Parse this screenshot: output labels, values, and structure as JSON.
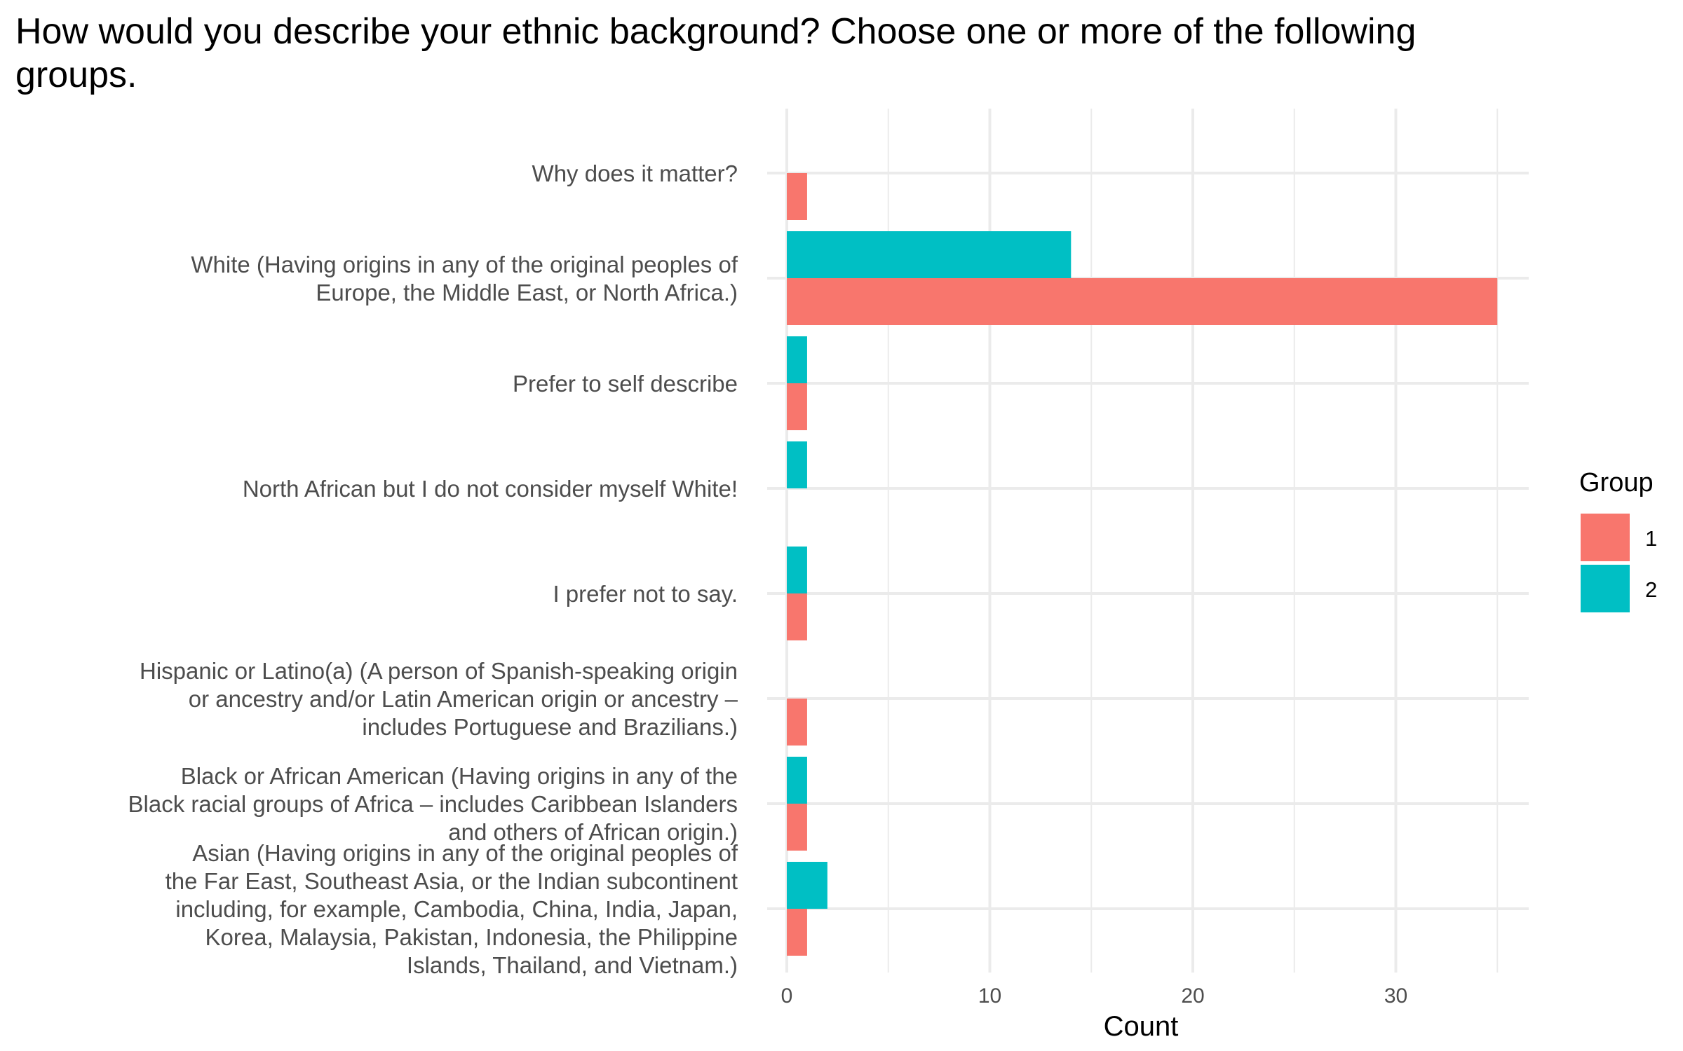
{
  "chart_data": {
    "type": "bar",
    "orientation": "horizontal",
    "title": "How would you describe your ethnic background? Choose one or more of the following groups.",
    "xlabel": "Count",
    "ylabel": "",
    "xlim": [
      0,
      36.5
    ],
    "x_ticks": [
      0,
      10,
      20,
      30
    ],
    "grid": true,
    "legend": {
      "title": "Group",
      "placement": "right"
    },
    "categories": [
      [
        "Why does it matter?"
      ],
      [
        "White (Having origins in any of the original peoples of",
        "Europe, the Middle East, or North Africa.)"
      ],
      [
        "Prefer to self describe"
      ],
      [
        "North African but I do not consider myself White!"
      ],
      [
        "I prefer not to say."
      ],
      [
        "Hispanic or Latino(a) (A person of Spanish-speaking origin",
        "or ancestry and/or Latin American origin or ancestry –",
        "includes Portuguese and Brazilians.)"
      ],
      [
        "Black or African American (Having origins in any of the",
        "Black racial groups of Africa – includes Caribbean Islanders",
        "and others of African origin.)"
      ],
      [
        "Asian (Having origins in any of the original peoples of",
        "the Far East, Southeast Asia, or the Indian subcontinent",
        "including, for example, Cambodia, China, India, Japan,",
        "Korea, Malaysia, Pakistan, Indonesia, the Philippine",
        "Islands, Thailand, and Vietnam.)"
      ]
    ],
    "series": [
      {
        "name": "1",
        "color": "#F8766D",
        "values": [
          1,
          35,
          1,
          0,
          1,
          1,
          1,
          1
        ]
      },
      {
        "name": "2",
        "color": "#00BFC4",
        "values": [
          0,
          14,
          1,
          1,
          1,
          0,
          1,
          2
        ]
      }
    ]
  }
}
